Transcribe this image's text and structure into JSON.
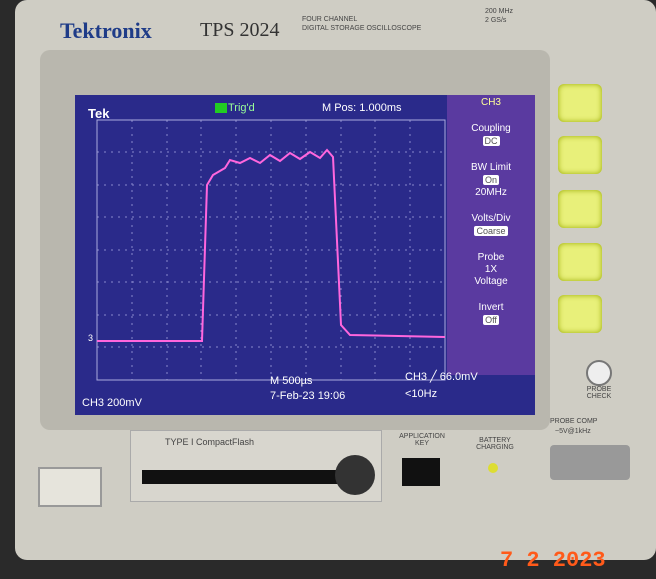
{
  "header": {
    "brand": "Tektronix",
    "model": "TPS 2024",
    "desc1": "FOUR CHANNEL",
    "desc2": "DIGITAL STORAGE OSCILLOSCOPE",
    "spec1": "200 MHz",
    "spec2": "2 GS/s"
  },
  "screen": {
    "tek": "Tek",
    "trig": "Trig'd",
    "mpos": "M Pos: 1.000ms",
    "ch_marker": "3",
    "menu": {
      "title": "CH3",
      "coupling": "Coupling",
      "coupling_val": "DC",
      "bw": "BW Limit",
      "bw_val": "On",
      "bw_freq": "20MHz",
      "vdiv": "Volts/Div",
      "vdiv_val": "Coarse",
      "probe": "Probe",
      "probe_x": "1X",
      "probe_type": "Voltage",
      "invert": "Invert",
      "invert_val": "Off"
    },
    "bottom": {
      "scale": "CH3  200mV",
      "time": "M 500µs",
      "date": "7-Feb-23 19:06",
      "trigger": "CH3 ╱ 66.0mV",
      "freq": "<10Hz"
    }
  },
  "panel": {
    "cf": "TYPE I CompactFlash",
    "app_key": "APPLICATION KEY",
    "battery": "BATTERY CHARGING",
    "probe_check": "PROBE CHECK",
    "probe_comp": "PROBE COMP",
    "probe_comp_spec": "~5V@1kHz"
  },
  "timestamp": "7  2  2023"
}
